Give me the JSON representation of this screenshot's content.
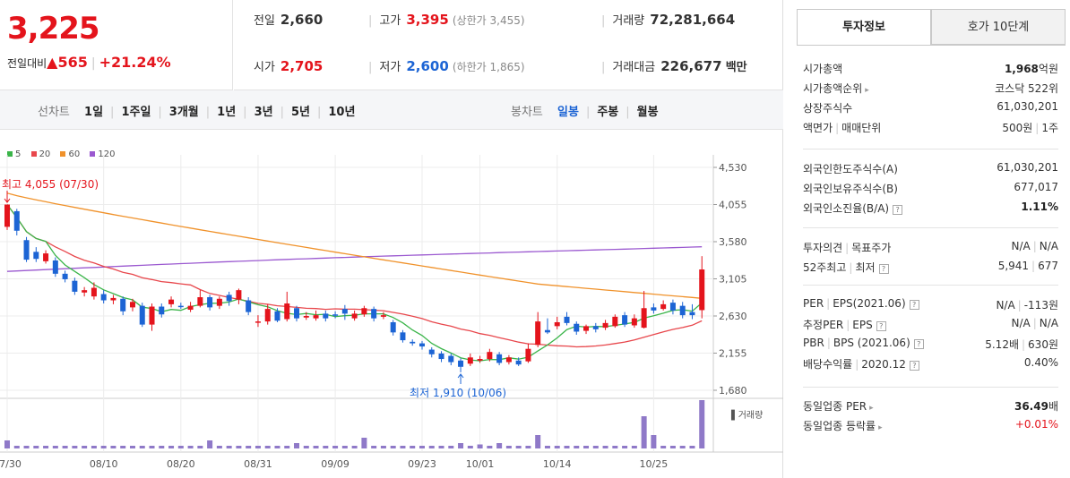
{
  "price": {
    "current": "3,225",
    "change_label": "전일대비",
    "change_arrow": "▲",
    "change_value": "565",
    "change_percent": "+21.24%"
  },
  "stats": {
    "prev_close": {
      "label": "전일",
      "value": "2,660"
    },
    "high": {
      "label": "고가",
      "value": "3,395",
      "sub": "(상한가 3,455)"
    },
    "volume": {
      "label": "거래량",
      "value": "72,281,664"
    },
    "open": {
      "label": "시가",
      "value": "2,705"
    },
    "low": {
      "label": "저가",
      "value": "2,600",
      "sub": "(하한가 1,865)"
    },
    "amount": {
      "label": "거래대금",
      "value": "226,677",
      "unit": "백만"
    }
  },
  "toolbar": {
    "line_label": "선차트",
    "periods": [
      "1일",
      "1주일",
      "3개월",
      "1년",
      "3년",
      "5년",
      "10년"
    ],
    "candle_label": "봉차트",
    "candles": [
      "일봉",
      "주봉",
      "월봉"
    ],
    "active_candle": "일봉"
  },
  "legend": [
    {
      "name": "5",
      "color": "#3bb54a"
    },
    {
      "name": "20",
      "color": "#e8474c"
    },
    {
      "name": "60",
      "color": "#f0922b"
    },
    {
      "name": "120",
      "color": "#9b59d0"
    }
  ],
  "chart_data": {
    "type": "candlestick",
    "y_ticks": [
      "4,530",
      "4,055",
      "3,580",
      "3,105",
      "2,630",
      "2,155",
      "1,680"
    ],
    "x_ticks": [
      "07/30",
      "08/10",
      "08/20",
      "08/31",
      "09/09",
      "09/23",
      "10/01",
      "10/14",
      "10/25"
    ],
    "ylim": [
      1680,
      4530
    ],
    "high_annotation": "최고 4,055 (07/30)",
    "low_annotation": "최저 1,910 (10/06)",
    "volume_label": "거래량",
    "candles": [
      {
        "o": 3770,
        "c": 4055,
        "h": 4055,
        "l": 3730
      },
      {
        "o": 3970,
        "c": 3720,
        "h": 4000,
        "l": 3660
      },
      {
        "o": 3600,
        "c": 3350,
        "h": 3640,
        "l": 3320
      },
      {
        "o": 3450,
        "c": 3360,
        "h": 3510,
        "l": 3320
      },
      {
        "o": 3330,
        "c": 3430,
        "h": 3470,
        "l": 3300
      },
      {
        "o": 3340,
        "c": 3170,
        "h": 3380,
        "l": 3130
      },
      {
        "o": 3170,
        "c": 3100,
        "h": 3210,
        "l": 3060
      },
      {
        "o": 3080,
        "c": 2940,
        "h": 3120,
        "l": 2900
      },
      {
        "o": 2930,
        "c": 2960,
        "h": 3000,
        "l": 2880
      },
      {
        "o": 2880,
        "c": 2990,
        "h": 3060,
        "l": 2840
      },
      {
        "o": 2910,
        "c": 2830,
        "h": 2960,
        "l": 2790
      },
      {
        "o": 2830,
        "c": 2860,
        "h": 2900,
        "l": 2780
      },
      {
        "o": 2850,
        "c": 2690,
        "h": 2880,
        "l": 2640
      },
      {
        "o": 2740,
        "c": 2810,
        "h": 2850,
        "l": 2690
      },
      {
        "o": 2760,
        "c": 2520,
        "h": 2800,
        "l": 2490
      },
      {
        "o": 2520,
        "c": 2750,
        "h": 2790,
        "l": 2440
      },
      {
        "o": 2750,
        "c": 2650,
        "h": 2790,
        "l": 2610
      },
      {
        "o": 2780,
        "c": 2840,
        "h": 2880,
        "l": 2740
      },
      {
        "o": 2760,
        "c": 2750,
        "h": 2800,
        "l": 2720
      },
      {
        "o": 2710,
        "c": 2760,
        "h": 2810,
        "l": 2680
      },
      {
        "o": 2760,
        "c": 2870,
        "h": 2960,
        "l": 2740
      },
      {
        "o": 2870,
        "c": 2740,
        "h": 2900,
        "l": 2700
      },
      {
        "o": 2760,
        "c": 2850,
        "h": 2880,
        "l": 2720
      },
      {
        "o": 2900,
        "c": 2820,
        "h": 2940,
        "l": 2760
      },
      {
        "o": 2840,
        "c": 2960,
        "h": 2980,
        "l": 2780
      },
      {
        "o": 2830,
        "c": 2680,
        "h": 2870,
        "l": 2640
      },
      {
        "o": 2560,
        "c": 2560,
        "h": 2640,
        "l": 2490
      },
      {
        "o": 2560,
        "c": 2720,
        "h": 2780,
        "l": 2520
      },
      {
        "o": 2690,
        "c": 2570,
        "h": 2730,
        "l": 2550
      },
      {
        "o": 2590,
        "c": 2790,
        "h": 2940,
        "l": 2560
      },
      {
        "o": 2730,
        "c": 2600,
        "h": 2760,
        "l": 2560
      },
      {
        "o": 2610,
        "c": 2630,
        "h": 2680,
        "l": 2580
      },
      {
        "o": 2600,
        "c": 2640,
        "h": 2700,
        "l": 2570
      },
      {
        "o": 2660,
        "c": 2600,
        "h": 2700,
        "l": 2560
      },
      {
        "o": 2650,
        "c": 2640,
        "h": 2690,
        "l": 2600
      },
      {
        "o": 2720,
        "c": 2660,
        "h": 2770,
        "l": 2580
      },
      {
        "o": 2600,
        "c": 2660,
        "h": 2700,
        "l": 2570
      },
      {
        "o": 2650,
        "c": 2730,
        "h": 2760,
        "l": 2620
      },
      {
        "o": 2720,
        "c": 2600,
        "h": 2750,
        "l": 2560
      },
      {
        "o": 2620,
        "c": 2640,
        "h": 2680,
        "l": 2590
      },
      {
        "o": 2550,
        "c": 2420,
        "h": 2580,
        "l": 2380
      },
      {
        "o": 2420,
        "c": 2320,
        "h": 2450,
        "l": 2290
      },
      {
        "o": 2300,
        "c": 2280,
        "h": 2330,
        "l": 2250
      },
      {
        "o": 2280,
        "c": 2240,
        "h": 2310,
        "l": 2200
      },
      {
        "o": 2200,
        "c": 2140,
        "h": 2230,
        "l": 2100
      },
      {
        "o": 2150,
        "c": 2080,
        "h": 2180,
        "l": 2040
      },
      {
        "o": 2120,
        "c": 2040,
        "h": 2150,
        "l": 2000
      },
      {
        "o": 2060,
        "c": 1980,
        "h": 2090,
        "l": 1910
      },
      {
        "o": 2020,
        "c": 2100,
        "h": 2150,
        "l": 1990
      },
      {
        "o": 2060,
        "c": 2080,
        "h": 2120,
        "l": 2030
      },
      {
        "o": 2080,
        "c": 2170,
        "h": 2210,
        "l": 2050
      },
      {
        "o": 2140,
        "c": 2030,
        "h": 2170,
        "l": 2000
      },
      {
        "o": 2040,
        "c": 2100,
        "h": 2130,
        "l": 2010
      },
      {
        "o": 2060,
        "c": 2010,
        "h": 2100,
        "l": 1990
      },
      {
        "o": 2050,
        "c": 2210,
        "h": 2280,
        "l": 2030
      },
      {
        "o": 2260,
        "c": 2560,
        "h": 2680,
        "l": 2230
      },
      {
        "o": 2450,
        "c": 2420,
        "h": 2600,
        "l": 2400
      },
      {
        "o": 2500,
        "c": 2550,
        "h": 2620,
        "l": 2460
      },
      {
        "o": 2620,
        "c": 2540,
        "h": 2680,
        "l": 2510
      },
      {
        "o": 2530,
        "c": 2430,
        "h": 2560,
        "l": 2390
      },
      {
        "o": 2440,
        "c": 2500,
        "h": 2520,
        "l": 2400
      },
      {
        "o": 2500,
        "c": 2460,
        "h": 2540,
        "l": 2420
      },
      {
        "o": 2480,
        "c": 2540,
        "h": 2580,
        "l": 2450
      },
      {
        "o": 2500,
        "c": 2620,
        "h": 2650,
        "l": 2480
      },
      {
        "o": 2640,
        "c": 2520,
        "h": 2680,
        "l": 2490
      },
      {
        "o": 2510,
        "c": 2600,
        "h": 2650,
        "l": 2480
      },
      {
        "o": 2480,
        "c": 2730,
        "h": 2950,
        "l": 2470
      },
      {
        "o": 2740,
        "c": 2700,
        "h": 2790,
        "l": 2660
      },
      {
        "o": 2720,
        "c": 2780,
        "h": 2830,
        "l": 2700
      },
      {
        "o": 2800,
        "c": 2700,
        "h": 2840,
        "l": 2650
      },
      {
        "o": 2760,
        "c": 2640,
        "h": 2810,
        "l": 2600
      },
      {
        "o": 2680,
        "c": 2640,
        "h": 2780,
        "l": 2590
      },
      {
        "o": 2705,
        "c": 3225,
        "h": 3395,
        "l": 2600
      }
    ],
    "volume": [
      3,
      1,
      1,
      1,
      1,
      1,
      1,
      1,
      1,
      1,
      1,
      1,
      1,
      1,
      1,
      1,
      1,
      1,
      1,
      1,
      1,
      1,
      1,
      1,
      1,
      1,
      1,
      1,
      1,
      1,
      1,
      1,
      1,
      1,
      1,
      1,
      1,
      1,
      1,
      1,
      1,
      1,
      1,
      1,
      1,
      1,
      1,
      1,
      1,
      1,
      1,
      1,
      1,
      1,
      1,
      1,
      1,
      1,
      1,
      1,
      1,
      1,
      1,
      1,
      1,
      1,
      1,
      1,
      1,
      1,
      1,
      1,
      1
    ]
  },
  "volume_bars": {
    "spikes": [
      {
        "index": 21,
        "value": 3
      },
      {
        "index": 30,
        "value": 2
      },
      {
        "index": 37,
        "value": 4
      },
      {
        "index": 47,
        "value": 2
      },
      {
        "index": 49,
        "value": 1.5
      },
      {
        "index": 51,
        "value": 2
      },
      {
        "index": 55,
        "value": 5
      },
      {
        "index": 66,
        "value": 12
      },
      {
        "index": 67,
        "value": 5
      },
      {
        "index": 72,
        "value": 18
      }
    ]
  },
  "info_tabs": [
    "투자정보",
    "호가 10단계"
  ],
  "info": {
    "group1": [
      {
        "key": "시가총액",
        "value_bold": "1,968",
        "value_suffix": "억원"
      },
      {
        "key": "시가총액순위",
        "has_arrow": true,
        "value": "코스닥 522위"
      },
      {
        "key": "상장주식수",
        "value": "61,030,201"
      },
      {
        "key": "액면가",
        "key2": "매매단위",
        "value": "500원",
        "value2": "1주"
      }
    ],
    "group2": [
      {
        "key": "외국인한도주식수(A)",
        "value": "61,030,201"
      },
      {
        "key": "외국인보유주식수(B)",
        "value": "677,017"
      },
      {
        "key": "외국인소진율(B/A)",
        "has_q": true,
        "value_bold": "1.11%"
      }
    ],
    "group3": [
      {
        "key": "투자의견",
        "key2": "목표주가",
        "value": "N/A",
        "value2": "N/A"
      },
      {
        "key": "52주최고",
        "key2": "최저",
        "has_q": true,
        "value": "5,941",
        "value2": "677"
      }
    ],
    "group4": [
      {
        "key": "PER",
        "key2": "EPS(2021.06)",
        "has_q": true,
        "value": "N/A",
        "value2": "-113원"
      },
      {
        "key": "추정PER",
        "key2": "EPS",
        "has_q": true,
        "value": "N/A",
        "value2": "N/A"
      },
      {
        "key": "PBR",
        "key2": "BPS (2021.06)",
        "has_q": true,
        "value": "5.12배",
        "value2": "630원"
      },
      {
        "key": "배당수익률",
        "key2": "2020.12",
        "has_q": true,
        "value": "0.40%"
      }
    ],
    "group5": [
      {
        "key": "동일업종 PER",
        "has_arrow": true,
        "value_bold": "36.49",
        "value_suffix": "배"
      },
      {
        "key": "동일업종 등락률",
        "has_arrow": true,
        "value_red": "+0.01%"
      }
    ]
  }
}
